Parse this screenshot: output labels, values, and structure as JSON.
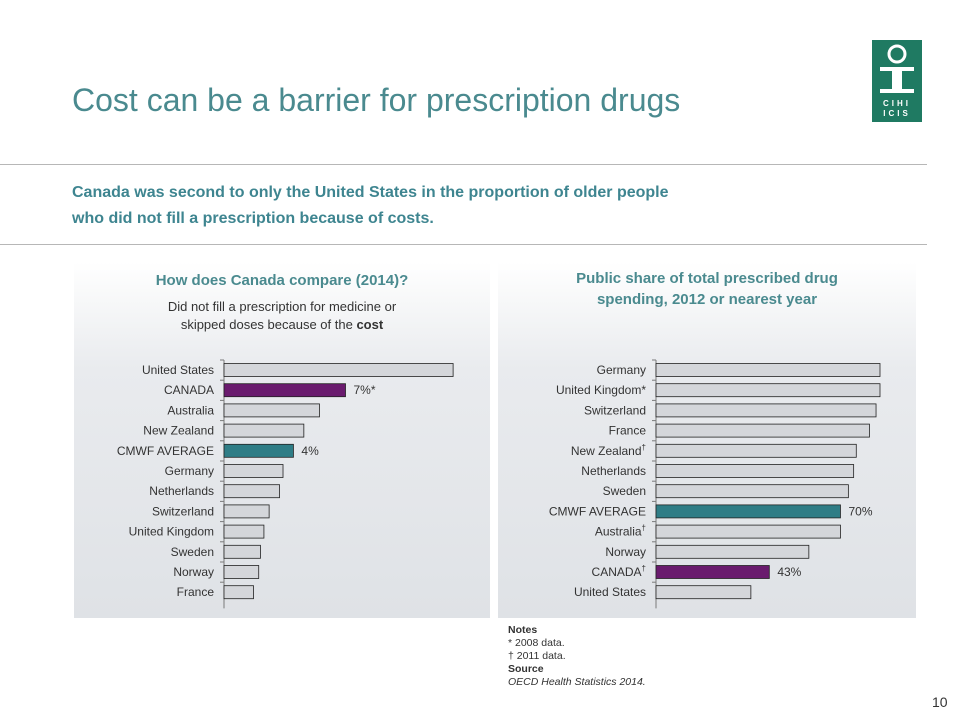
{
  "slide": {
    "title": "Cost can be a barrier for prescription drugs",
    "lead_line1": "Canada was second to only the United States in the proportion of older people",
    "lead_line2": "who did not fill a prescription because of costs.",
    "page_number": "10",
    "logo_text": "CIHI ICIS"
  },
  "colors": {
    "title": "#4a8a8f",
    "bar_default": "#d4d6da",
    "bar_canada": "#6a1b6e",
    "bar_average": "#2f7d86",
    "logo": "#1f7a62"
  },
  "notes": {
    "heading": "Notes",
    "note1": "*  2008 data.",
    "note2": "† 2011 data.",
    "source_heading": "Source",
    "source": "OECD Health Statistics 2014."
  },
  "chart_data": [
    {
      "type": "bar",
      "orientation": "horizontal",
      "title": "How does Canada compare (2014)?",
      "subtitle_line1": "Did not fill a prescription for medicine or",
      "subtitle_line2_prefix": "skipped doses because of the ",
      "subtitle_line2_bold": "cost",
      "categories": [
        "United States",
        "CANADA",
        "Australia",
        "New Zealand",
        "CMWF AVERAGE",
        "Germany",
        "Netherlands",
        "Switzerland",
        "United Kingdom",
        "Sweden",
        "Norway",
        "France"
      ],
      "values": [
        13.2,
        7.0,
        5.5,
        4.6,
        4.0,
        3.4,
        3.2,
        2.6,
        2.3,
        2.1,
        2.0,
        1.7
      ],
      "highlight": [
        "",
        "canada",
        "",
        "",
        "average",
        "",
        "",
        "",
        "",
        "",
        "",
        ""
      ],
      "data_labels": [
        "",
        "7%*",
        "",
        "",
        "4%",
        "",
        "",
        "",
        "",
        "",
        "",
        ""
      ],
      "xlim": [
        0,
        14
      ]
    },
    {
      "type": "bar",
      "orientation": "horizontal",
      "title_line1": "Public share of total prescribed drug",
      "title_line2": "spending, 2012 or nearest year",
      "categories": [
        "Germany",
        "United Kingdom*",
        "Switzerland",
        "France",
        "New Zealand",
        "Netherlands",
        "Sweden",
        "CMWF AVERAGE",
        "Australia",
        "Norway",
        "CANADA",
        "United States"
      ],
      "dagger": [
        "",
        "",
        "",
        "",
        "†",
        "",
        "",
        "",
        "†",
        "",
        "†",
        ""
      ],
      "values": [
        85,
        85,
        83.5,
        81,
        76,
        75,
        73,
        70,
        70,
        58,
        43,
        36
      ],
      "highlight": [
        "",
        "",
        "",
        "",
        "",
        "",
        "",
        "average",
        "",
        "",
        "canada",
        ""
      ],
      "data_labels": [
        "",
        "",
        "",
        "",
        "",
        "",
        "",
        "70%",
        "",
        "",
        "43%",
        ""
      ],
      "xlim": [
        0,
        85
      ]
    }
  ]
}
